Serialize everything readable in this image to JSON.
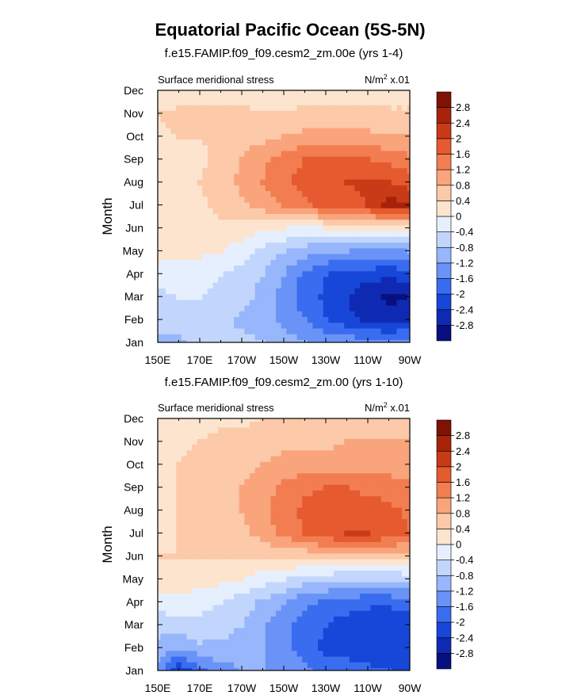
{
  "title": "Equatorial Pacific Ocean (5S-5N)",
  "colorbar": {
    "levels": [
      "-2.8",
      "-2.4",
      "-2",
      "-1.6",
      "-1.2",
      "-0.8",
      "-0.4",
      "0",
      "0.4",
      "0.8",
      "1.2",
      "1.6",
      "2",
      "2.4",
      "2.8"
    ],
    "colors": [
      "#08107f",
      "#0e2ab3",
      "#1747d8",
      "#3a6cf0",
      "#6a93f7",
      "#98b6fb",
      "#c2d6fd",
      "#e6effe",
      "#fde4cf",
      "#fcc9a9",
      "#f9a47b",
      "#f27d50",
      "#e55a2f",
      "#c93a16",
      "#a8220a",
      "#7e1205"
    ]
  },
  "chart_data": [
    {
      "type": "heatmap",
      "panel_title": "f.e15.FAMIP.f09_f09.cesm2_zm.00e (yrs 1-4)",
      "left_label": "Surface meridional stress",
      "right_label_base": "N/m",
      "right_label_exp": "2",
      "right_label_scale": "x.01",
      "xlabel": "",
      "ylabel": "Month",
      "xticks": [
        "150E",
        "170E",
        "170W",
        "150W",
        "130W",
        "110W",
        "90W"
      ],
      "yticks": [
        "Jan",
        "Feb",
        "Mar",
        "Apr",
        "May",
        "Jun",
        "Jul",
        "Aug",
        "Sep",
        "Oct",
        "Nov",
        "Dec"
      ],
      "xrange_deg_east": [
        150,
        270
      ],
      "grid": [
        [
          -0.9,
          -1.0,
          -0.5,
          -0.6,
          -0.7,
          -0.8,
          -1.0,
          -1.2,
          -1.3,
          -1.3,
          -1.4,
          -1.4,
          -1.3
        ],
        [
          -0.7,
          -0.6,
          -0.5,
          -0.7,
          -0.9,
          -1.0,
          -1.3,
          -1.6,
          -2.0,
          -2.3,
          -2.5,
          -2.7,
          -2.6
        ],
        [
          -0.5,
          -0.4,
          -0.4,
          -0.5,
          -0.6,
          -1.0,
          -1.4,
          -1.8,
          -2.1,
          -2.4,
          -2.7,
          -2.9,
          -2.8
        ],
        [
          -0.2,
          -0.3,
          -0.3,
          -0.4,
          -0.6,
          -0.8,
          -1.2,
          -1.7,
          -2.0,
          -2.1,
          -2.2,
          -2.3,
          -2.2
        ],
        [
          0.2,
          0.2,
          0.1,
          0.0,
          -0.2,
          -0.5,
          -0.8,
          -1.0,
          -1.2,
          -1.2,
          -1.3,
          -1.3,
          -1.2
        ],
        [
          0.3,
          0.3,
          0.3,
          0.3,
          0.2,
          0.1,
          0.0,
          -0.1,
          0.0,
          0.0,
          0.1,
          0.1,
          0.1
        ],
        [
          0.3,
          0.3,
          0.3,
          0.5,
          0.7,
          1.0,
          1.2,
          1.5,
          1.7,
          1.8,
          2.0,
          2.6,
          2.4
        ],
        [
          0.2,
          0.3,
          0.4,
          0.6,
          0.9,
          1.2,
          1.5,
          1.8,
          1.9,
          2.0,
          2.1,
          2.0,
          1.8
        ],
        [
          0.2,
          0.3,
          0.3,
          0.5,
          0.8,
          1.1,
          1.4,
          1.6,
          1.7,
          1.7,
          1.6,
          1.5,
          1.3
        ],
        [
          0.3,
          0.4,
          0.4,
          0.5,
          0.6,
          0.7,
          0.8,
          0.9,
          0.9,
          0.9,
          0.9,
          0.8,
          0.8
        ],
        [
          0.4,
          0.5,
          0.5,
          0.5,
          0.5,
          0.4,
          0.4,
          0.5,
          0.5,
          0.5,
          0.5,
          0.5,
          0.5
        ],
        [
          0.0,
          0.1,
          0.2,
          0.2,
          0.2,
          0.2,
          0.2,
          0.2,
          0.2,
          0.2,
          0.2,
          0.1,
          0.1
        ]
      ],
      "zlevels": [
        -2.8,
        -2.4,
        -2,
        -1.6,
        -1.2,
        -0.8,
        -0.4,
        0,
        0.4,
        0.8,
        1.2,
        1.6,
        2,
        2.4,
        2.8
      ]
    },
    {
      "type": "heatmap",
      "panel_title": "f.e15.FAMIP.f09_f09.cesm2_zm.00 (yrs 1-10)",
      "left_label": "Surface meridional stress",
      "right_label_base": "N/m",
      "right_label_exp": "2",
      "right_label_scale": "x.01",
      "xlabel": "",
      "ylabel": "Month",
      "xticks": [
        "150E",
        "170E",
        "170W",
        "150W",
        "130W",
        "110W",
        "90W"
      ],
      "yticks": [
        "Jan",
        "Feb",
        "Mar",
        "Apr",
        "May",
        "Jun",
        "Jul",
        "Aug",
        "Sep",
        "Oct",
        "Nov",
        "Dec"
      ],
      "xrange_deg_east": [
        150,
        270
      ],
      "grid": [
        [
          -1.3,
          -2.4,
          -1.7,
          -1.4,
          -1.2,
          -1.2,
          -1.3,
          -1.5,
          -1.8,
          -1.8,
          -1.9,
          -2.0,
          -2.1
        ],
        [
          -1.0,
          -1.2,
          -0.9,
          -0.9,
          -1.0,
          -1.2,
          -1.5,
          -1.8,
          -2.1,
          -2.2,
          -2.3,
          -2.4,
          -2.3
        ],
        [
          -0.6,
          -0.5,
          -0.5,
          -0.6,
          -0.8,
          -1.1,
          -1.5,
          -1.8,
          -2.0,
          -2.2,
          -2.3,
          -2.4,
          -2.3
        ],
        [
          -0.3,
          -0.2,
          -0.3,
          -0.4,
          -0.6,
          -0.9,
          -1.2,
          -1.5,
          -1.7,
          -1.8,
          -1.9,
          -1.9,
          -1.8
        ],
        [
          0.3,
          0.3,
          0.2,
          0.1,
          0.0,
          -0.2,
          -0.4,
          -0.6,
          -0.7,
          -0.8,
          -0.8,
          -0.8,
          -0.7
        ],
        [
          0.4,
          0.4,
          0.4,
          0.4,
          0.4,
          0.4,
          0.5,
          0.5,
          0.6,
          0.6,
          0.6,
          0.6,
          0.6
        ],
        [
          0.3,
          0.4,
          0.5,
          0.6,
          0.7,
          1.0,
          1.3,
          1.6,
          1.9,
          2.0,
          2.0,
          1.9,
          1.6
        ],
        [
          0.3,
          0.4,
          0.5,
          0.6,
          0.8,
          1.1,
          1.4,
          1.7,
          1.8,
          1.8,
          1.8,
          1.7,
          1.5
        ],
        [
          0.3,
          0.4,
          0.5,
          0.6,
          0.8,
          1.0,
          1.3,
          1.5,
          1.6,
          1.6,
          1.5,
          1.4,
          1.3
        ],
        [
          0.3,
          0.4,
          0.5,
          0.6,
          0.7,
          0.8,
          0.9,
          1.0,
          1.0,
          1.0,
          1.0,
          1.0,
          1.0
        ],
        [
          0.2,
          0.3,
          0.4,
          0.5,
          0.6,
          0.6,
          0.7,
          0.7,
          0.7,
          0.8,
          0.8,
          0.8,
          0.8
        ],
        [
          0.0,
          0.2,
          0.3,
          0.3,
          0.3,
          0.4,
          0.4,
          0.4,
          0.4,
          0.5,
          0.5,
          0.5,
          0.4
        ]
      ],
      "zlevels": [
        -2.8,
        -2.4,
        -2,
        -1.6,
        -1.2,
        -0.8,
        -0.4,
        0,
        0.4,
        0.8,
        1.2,
        1.6,
        2,
        2.4,
        2.8
      ]
    }
  ]
}
